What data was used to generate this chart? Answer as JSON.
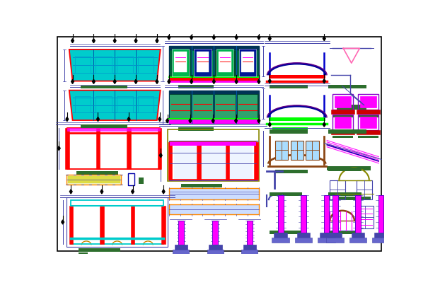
{
  "bg_color": "#ffffff",
  "border_color": "#000000",
  "colors": {
    "blue_dark": "#0000aa",
    "blue_med": "#4444cc",
    "blue_light": "#6688cc",
    "cyan": "#00cccc",
    "cyan_light": "#00ffff",
    "red": "#ff0000",
    "green_dark": "#2d6e2d",
    "green_bright": "#00ff00",
    "magenta": "#ff00ff",
    "purple": "#8800aa",
    "brown": "#8b4513",
    "teal_dark": "#006666",
    "gray": "#888888",
    "pink": "#ff69b4",
    "olive": "#808000",
    "yellow": "#dddd00",
    "orange": "#ff8800"
  }
}
